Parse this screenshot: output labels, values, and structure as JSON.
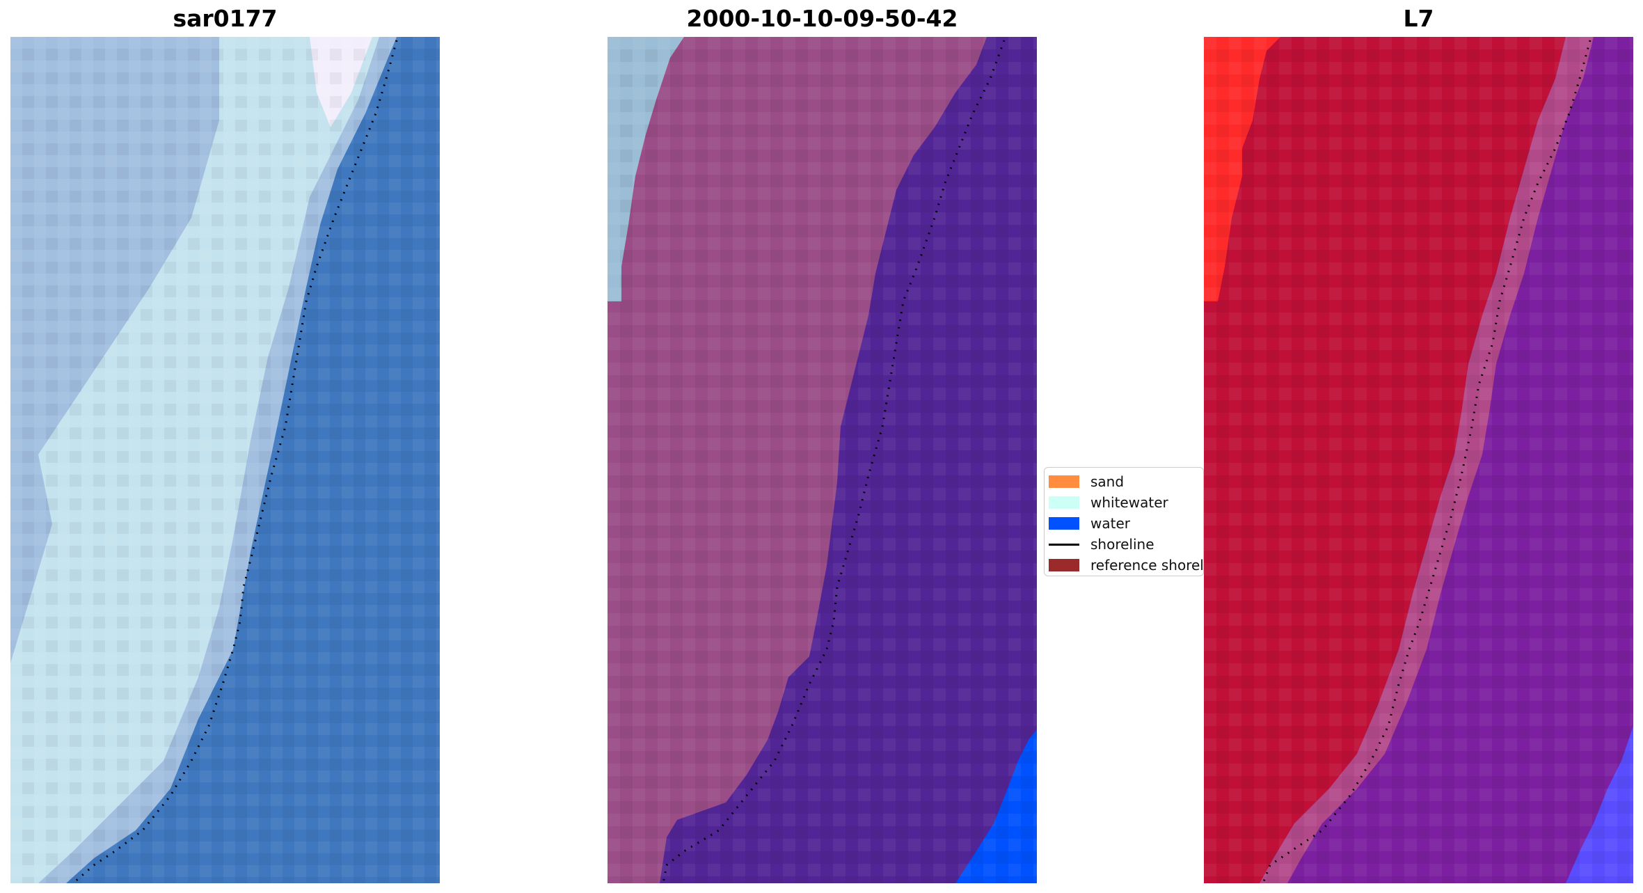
{
  "panels": [
    {
      "title": "sar0177"
    },
    {
      "title": "2000-10-10-09-50-42"
    },
    {
      "title": "L7"
    }
  ],
  "legend": {
    "items": [
      {
        "label": "sand",
        "color": "#ff8c3f",
        "kind": "patch"
      },
      {
        "label": "whitewater",
        "color": "#ccfff6",
        "kind": "patch"
      },
      {
        "label": "water",
        "color": "#0052ff",
        "kind": "patch"
      },
      {
        "label": "shoreline",
        "color": "#000000",
        "kind": "line"
      },
      {
        "label": "reference shoreline",
        "color": "#9b2b2b",
        "kind": "patch"
      }
    ]
  },
  "colors": {
    "rgb_land": "#9fbbdd",
    "rgb_surf": "#c8e6ee",
    "rgb_water": "#3d78bd",
    "class_land": "#9b4e86",
    "class_whitewater_overlay": "#9cc0d8",
    "class_water": "#522596",
    "class_water_bright": "#0052ff",
    "mndwi_land": "#c01038",
    "mndwi_bright": "#ff2020",
    "mndwi_water": "#7a1fa0",
    "mndwi_blue": "#5050ff"
  }
}
